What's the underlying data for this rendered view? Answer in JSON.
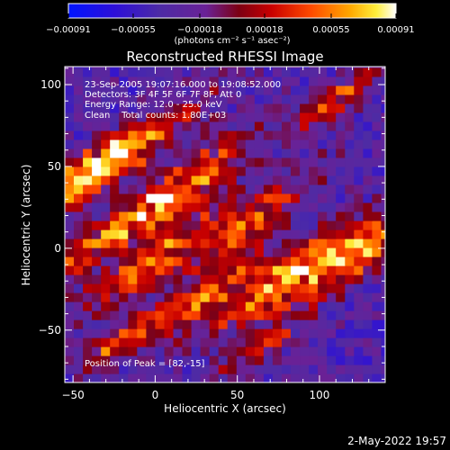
{
  "chart_data": {
    "type": "heatmap",
    "title": "Reconstructed RHESSI Image",
    "xlabel": "Heliocentric X (arcsec)",
    "ylabel": "Heliocentric Y (arcsec)",
    "xlim": [
      -55,
      140
    ],
    "ylim": [
      -82,
      111
    ],
    "x_ticks": [
      -50,
      0,
      50,
      100
    ],
    "y_ticks": [
      -50,
      0,
      50,
      100
    ],
    "x_tick_labels": [
      "−50",
      "0",
      "50",
      "100"
    ],
    "y_tick_labels": [
      "−50",
      "0",
      "50",
      "100"
    ],
    "colorbar": {
      "min": -0.00091,
      "max": 0.00091,
      "tick_values": [
        -0.00091,
        -0.00055,
        -0.00018,
        0.00018,
        0.00055,
        0.00091
      ],
      "tick_labels": [
        "−0.00091",
        "−0.00055",
        "−0.00018",
        "0.00018",
        "0.00055",
        "0.00091"
      ],
      "units": "(photons cm⁻² s⁻¹ asec⁻²)"
    },
    "annotations": [
      "23-Sep-2005 19:07:16.000 to 19:08:52.000",
      "Detectors: 3F 4F 5F 6F 7F 8F, Att 0",
      "Energy Range: 12.0 - 25.0 keV",
      "Clean    Total counts: 1.80E+03"
    ],
    "peak_label": "Position of Peak = [82,-15]",
    "peak": [
      82,
      -15
    ],
    "ridges": [
      {
        "x": -46,
        "y": 46,
        "dx": 22,
        "dy": 48,
        "amp": 0.00075
      },
      {
        "x": -18,
        "y": 56,
        "dx": 24,
        "dy": 56,
        "amp": 0.0008
      },
      {
        "x": -34,
        "y": 5,
        "dx": 22,
        "dy": 48,
        "amp": 0.0007
      },
      {
        "x": 18,
        "y": 38,
        "dx": 30,
        "dy": 46,
        "amp": 0.00085
      },
      {
        "x": -4,
        "y": -8,
        "dx": 24,
        "dy": 50,
        "amp": 0.0008
      },
      {
        "x": 28,
        "y": -30,
        "dx": 26,
        "dy": 46,
        "amp": 0.00075
      },
      {
        "x": 58,
        "y": 18,
        "dx": 26,
        "dy": 48,
        "amp": 0.0007
      },
      {
        "x": 82,
        "y": -15,
        "dx": 26,
        "dy": 52,
        "amp": 0.00091
      },
      {
        "x": 122,
        "y": -6,
        "dx": 26,
        "dy": 52,
        "amp": 0.0008
      },
      {
        "x": 112,
        "y": 92,
        "dx": 18,
        "dy": 30,
        "amp": 0.0007
      },
      {
        "x": -24,
        "y": -58,
        "dx": 16,
        "dy": 24,
        "amp": 0.0006
      },
      {
        "x": 62,
        "y": -62,
        "dx": 18,
        "dy": 26,
        "amp": 0.0006
      }
    ]
  },
  "footer": {
    "date": "2-May-2022 19:57"
  }
}
